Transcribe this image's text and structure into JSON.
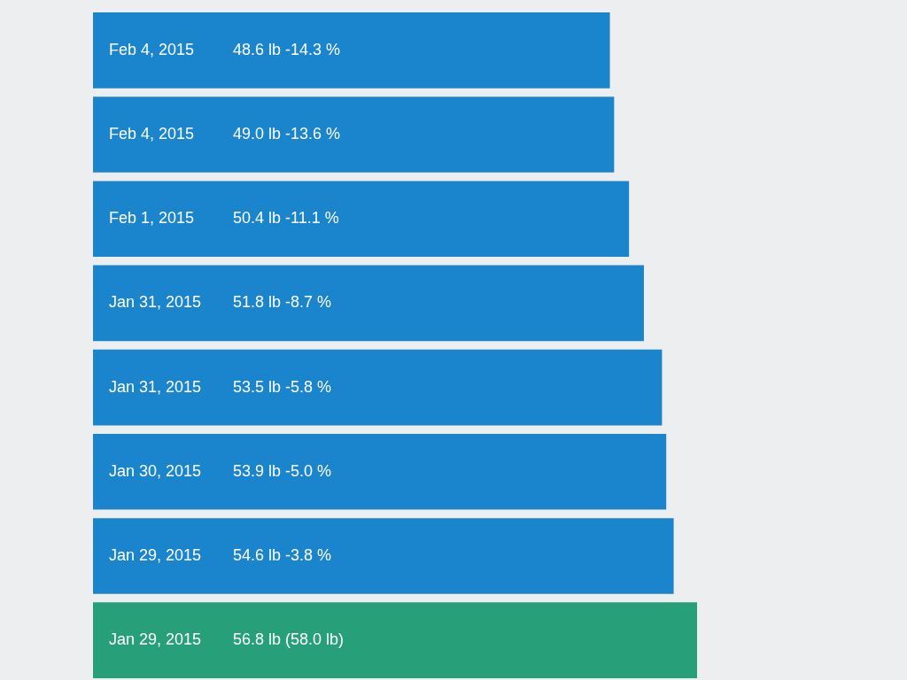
{
  "chart_data": {
    "type": "bar",
    "orientation": "horizontal",
    "categories": [
      "Feb 4, 2015",
      "Feb 4, 2015",
      "Feb 1, 2015",
      "Jan 31, 2015",
      "Jan 31, 2015",
      "Jan 30, 2015",
      "Jan 29, 2015",
      "Jan 29, 2015"
    ],
    "values": [
      48.6,
      49.0,
      50.4,
      51.8,
      53.5,
      53.9,
      54.6,
      56.8
    ],
    "value_labels": [
      "48.6 lb   -14.3 %",
      "49.0 lb   -13.6 %",
      "50.4 lb   -11.1 %",
      "51.8 lb   -8.7 %",
      "53.5 lb   -5.8 %",
      "53.9 lb   -5.0 %",
      "54.6 lb   -3.8 %",
      "56.8 lb   (58.0 lb)"
    ],
    "colors": [
      "#1a84cc",
      "#1a84cc",
      "#1a84cc",
      "#1a84cc",
      "#1a84cc",
      "#1a84cc",
      "#1a84cc",
      "#27a07a"
    ]
  }
}
